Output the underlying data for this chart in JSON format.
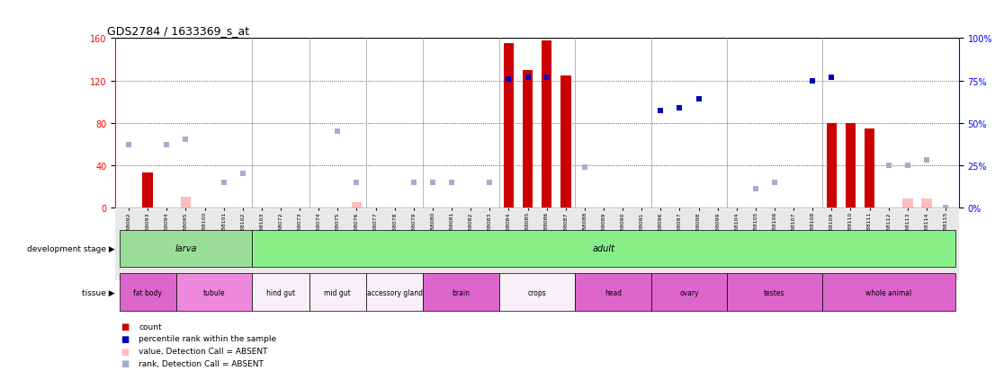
{
  "title": "GDS2784 / 1633369_s_at",
  "samples": [
    "GSM188092",
    "GSM188093",
    "GSM188094",
    "GSM188095",
    "GSM188100",
    "GSM188101",
    "GSM188102",
    "GSM188103",
    "GSM188072",
    "GSM188073",
    "GSM188074",
    "GSM188075",
    "GSM188076",
    "GSM188077",
    "GSM188078",
    "GSM188079",
    "GSM188080",
    "GSM188081",
    "GSM188082",
    "GSM188083",
    "GSM188084",
    "GSM188085",
    "GSM188086",
    "GSM188087",
    "GSM188088",
    "GSM188089",
    "GSM188090",
    "GSM188091",
    "GSM188096",
    "GSM188097",
    "GSM188098",
    "GSM188099",
    "GSM188104",
    "GSM188105",
    "GSM188106",
    "GSM188107",
    "GSM188108",
    "GSM188109",
    "GSM188110",
    "GSM188111",
    "GSM188112",
    "GSM188113",
    "GSM188114",
    "GSM188115"
  ],
  "count_values": [
    null,
    33,
    null,
    null,
    null,
    null,
    null,
    null,
    null,
    null,
    null,
    null,
    null,
    null,
    null,
    null,
    null,
    null,
    null,
    null,
    155,
    130,
    158,
    125,
    null,
    null,
    null,
    null,
    null,
    null,
    null,
    null,
    null,
    null,
    null,
    null,
    null,
    80,
    80,
    75,
    null,
    null,
    null,
    null
  ],
  "count_absent": [
    null,
    null,
    null,
    10,
    null,
    null,
    null,
    null,
    null,
    null,
    null,
    null,
    5,
    null,
    null,
    null,
    null,
    null,
    null,
    null,
    null,
    null,
    null,
    null,
    null,
    null,
    null,
    null,
    null,
    null,
    null,
    null,
    null,
    null,
    null,
    null,
    null,
    null,
    null,
    null,
    null,
    8,
    8,
    null
  ],
  "rank_values": [
    null,
    null,
    null,
    null,
    null,
    null,
    null,
    null,
    null,
    null,
    null,
    null,
    null,
    null,
    null,
    null,
    null,
    null,
    null,
    null,
    76,
    77,
    77,
    null,
    null,
    null,
    null,
    null,
    57,
    59,
    64,
    null,
    null,
    null,
    null,
    null,
    75,
    77,
    null,
    null,
    null,
    null,
    null,
    null
  ],
  "rank_absent": [
    37,
    null,
    37,
    40,
    null,
    15,
    20,
    null,
    null,
    null,
    null,
    45,
    15,
    null,
    null,
    15,
    15,
    15,
    null,
    15,
    null,
    null,
    null,
    null,
    24,
    null,
    null,
    null,
    null,
    null,
    null,
    null,
    null,
    11,
    15,
    null,
    null,
    null,
    null,
    null,
    25,
    25,
    28,
    0
  ],
  "dev_stage_groups": [
    {
      "label": "larva",
      "start": 0,
      "end": 7
    },
    {
      "label": "adult",
      "start": 7,
      "end": 44
    }
  ],
  "tissue_groups": [
    {
      "label": "fat body",
      "start": 0,
      "end": 3,
      "pink": true
    },
    {
      "label": "tubule",
      "start": 3,
      "end": 7,
      "pink": true
    },
    {
      "label": "hind gut",
      "start": 7,
      "end": 10,
      "pink": false
    },
    {
      "label": "mid gut",
      "start": 10,
      "end": 13,
      "pink": false
    },
    {
      "label": "accessory gland",
      "start": 13,
      "end": 16,
      "pink": false
    },
    {
      "label": "brain",
      "start": 16,
      "end": 20,
      "pink": true
    },
    {
      "label": "crops",
      "start": 20,
      "end": 24,
      "pink": false
    },
    {
      "label": "head",
      "start": 24,
      "end": 28,
      "pink": true
    },
    {
      "label": "ovary",
      "start": 28,
      "end": 32,
      "pink": true
    },
    {
      "label": "testes",
      "start": 32,
      "end": 37,
      "pink": true
    },
    {
      "label": "whole animal",
      "start": 37,
      "end": 44,
      "pink": true
    }
  ],
  "ylim_left": [
    0,
    160
  ],
  "ylim_right": [
    0,
    100
  ],
  "left_yticks": [
    0,
    40,
    80,
    120,
    160
  ],
  "right_yticks": [
    0,
    25,
    50,
    75,
    100
  ],
  "bar_color": "#cc0000",
  "bar_absent_color": "#ffbbbb",
  "rank_color": "#0000bb",
  "rank_absent_color": "#aaaacc",
  "larva_color": "#99dd99",
  "adult_color": "#88ee88",
  "tissue_pink_color": "#dd66cc",
  "tissue_pink2_color": "#ee88dd",
  "tissue_white_color": "#f8f0f8"
}
